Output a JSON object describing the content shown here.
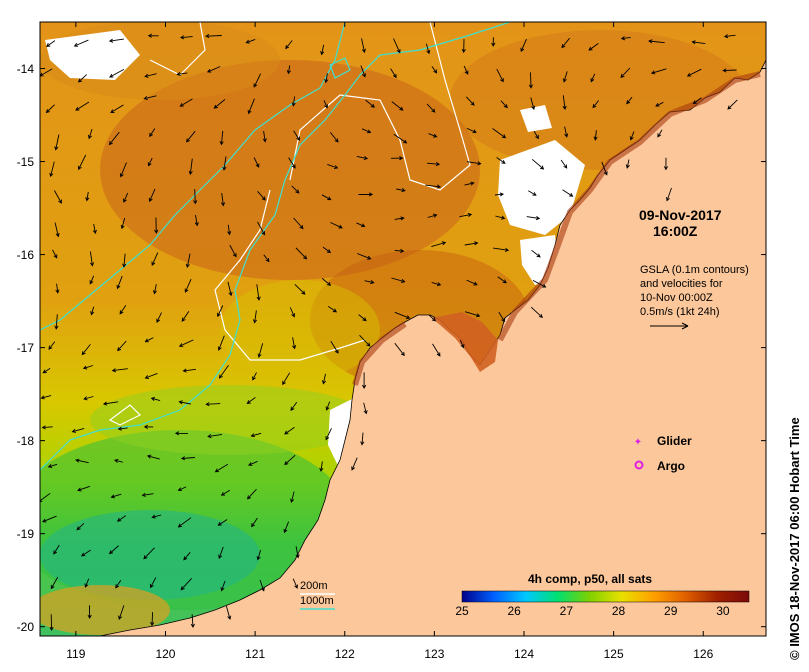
{
  "map": {
    "lat_ticks": [
      "-14",
      "-15",
      "-16",
      "-17",
      "-18",
      "-19",
      "-20"
    ],
    "lon_ticks": [
      "119",
      "120",
      "121",
      "122",
      "123",
      "124",
      "125",
      "126"
    ],
    "lat_range": [
      -20.1,
      -13.5
    ],
    "lon_range": [
      118.6,
      126.7
    ]
  },
  "annotations": {
    "date": "09-Nov-2017",
    "time": "16:00Z",
    "gsla_line1": "GSLA (0.1m contours)",
    "gsla_line2": "and velocities for",
    "gsla_line3": "10-Nov 00:00Z",
    "gsla_line4": "0.5m/s (1kt 24h)"
  },
  "legend": {
    "glider_label": "Glider",
    "argo_label": "Argo",
    "glider_color": "#e020e0",
    "argo_color": "#e020e0"
  },
  "isobaths": {
    "label_200m": "200m",
    "label_1000m": "1000m",
    "color_200m": "#ffffff",
    "color_1000m": "#40e0d0"
  },
  "colorbar": {
    "title": "4h comp, p50, all sats",
    "ticks": [
      "25",
      "26",
      "27",
      "28",
      "29",
      "30"
    ],
    "range": [
      25,
      30.5
    ],
    "stops": [
      "#00008b",
      "#0060ff",
      "#00c8ff",
      "#00e070",
      "#7fd000",
      "#e8e000",
      "#ffa000",
      "#e06000",
      "#a02000",
      "#7a0a0a"
    ]
  },
  "credit": "© IMOS 18-Nov-2017 06:00 Hobart Time",
  "colors": {
    "land": "#fcc79a",
    "sea_warm": "#e88f10",
    "sea_hot": "#c45a10",
    "sea_mild": "#b8d800",
    "sea_cool": "#40c840",
    "sea_cold": "#20b080",
    "cloud": "#ffffff"
  }
}
